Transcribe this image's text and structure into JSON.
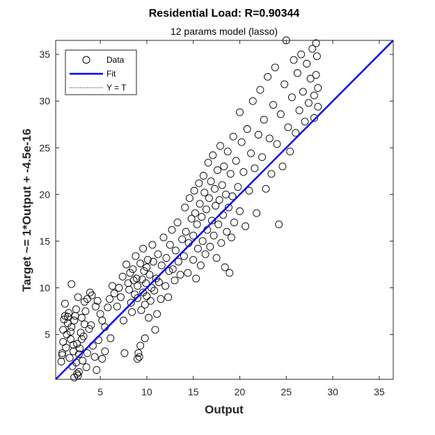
{
  "chart_data": {
    "type": "scatter",
    "title": "Residential Load: R=0.90344",
    "subtitle": "12 params model (lasso)",
    "xlabel": "Output",
    "ylabel": "Target ~= 1*Output + -4.5e-16",
    "xlim": [
      0.2,
      36.5
    ],
    "ylim": [
      0.2,
      36.5
    ],
    "xticks": [
      5,
      10,
      15,
      20,
      25,
      30,
      35
    ],
    "yticks": [
      5,
      10,
      15,
      20,
      25,
      30,
      35
    ],
    "grid": false,
    "legend_position": "top-left",
    "legend": [
      {
        "label": "Data",
        "style": "open-circle",
        "color": "#000000"
      },
      {
        "label": "Fit",
        "style": "solid-line",
        "color": "#0000ff"
      },
      {
        "label": "Y = T",
        "style": "dotted-line",
        "color": "#000000"
      }
    ],
    "fit": {
      "slope": 1,
      "intercept": -4.5e-16,
      "color": "#0000ff"
    },
    "series": [
      {
        "name": "Data",
        "marker": "open-circle",
        "color": "#000000",
        "points": [
          [
            0.8,
            2.1
          ],
          [
            0.9,
            3.0
          ],
          [
            1.0,
            4.2
          ],
          [
            1.0,
            5.5
          ],
          [
            1.1,
            6.6
          ],
          [
            1.2,
            7.0
          ],
          [
            0.9,
            2.8
          ],
          [
            1.3,
            3.6
          ],
          [
            1.4,
            5.0
          ],
          [
            1.5,
            6.2
          ],
          [
            1.6,
            7.3
          ],
          [
            1.7,
            2.5
          ],
          [
            1.8,
            4.5
          ],
          [
            1.9,
            5.8
          ],
          [
            2.0,
            1.6
          ],
          [
            2.1,
            3.2
          ],
          [
            2.2,
            6.5
          ],
          [
            2.3,
            7.0
          ],
          [
            2.4,
            2.0
          ],
          [
            2.5,
            4.0
          ],
          [
            2.6,
            0.6
          ],
          [
            2.7,
            1.0
          ],
          [
            2.8,
            3.5
          ],
          [
            2.9,
            5.2
          ],
          [
            3.0,
            6.8
          ],
          [
            2.2,
            0.4
          ],
          [
            2.5,
            0.8
          ],
          [
            3.1,
            2.2
          ],
          [
            3.2,
            4.8
          ],
          [
            3.4,
            7.5
          ],
          [
            3.5,
            1.5
          ],
          [
            3.6,
            3.0
          ],
          [
            3.8,
            5.6
          ],
          [
            4.0,
            6.0
          ],
          [
            4.2,
            3.8
          ],
          [
            4.4,
            2.6
          ],
          [
            4.5,
            8.0
          ],
          [
            4.6,
            1.2
          ],
          [
            4.8,
            4.4
          ],
          [
            5.0,
            7.2
          ],
          [
            1.2,
            8.3
          ],
          [
            1.5,
            6.9
          ],
          [
            1.8,
            5.3
          ],
          [
            2.1,
            3.9
          ],
          [
            2.4,
            7.7
          ],
          [
            2.7,
            2.9
          ],
          [
            3.0,
            4.5
          ],
          [
            3.3,
            6.1
          ],
          [
            3.6,
            8.8
          ],
          [
            3.9,
            9.5
          ],
          [
            1.9,
            10.4
          ],
          [
            2.6,
            9.0
          ],
          [
            3.3,
            8.5
          ],
          [
            4.1,
            9.2
          ],
          [
            4.7,
            8.6
          ],
          [
            5.2,
            6.5
          ],
          [
            5.5,
            5.8
          ],
          [
            5.8,
            7.9
          ],
          [
            6.0,
            8.8
          ],
          [
            6.3,
            10.2
          ],
          [
            5.5,
            3.2
          ],
          [
            5.2,
            2.4
          ],
          [
            6.1,
            4.6
          ],
          [
            6.5,
            9.4
          ],
          [
            6.8,
            8.0
          ],
          [
            7.0,
            10.0
          ],
          [
            7.2,
            9.0
          ],
          [
            7.4,
            11.2
          ],
          [
            7.5,
            6.5
          ],
          [
            7.6,
            3.0
          ],
          [
            7.8,
            12.5
          ],
          [
            8.0,
            10.5
          ],
          [
            8.1,
            9.8
          ],
          [
            8.2,
            11.6
          ],
          [
            8.3,
            8.4
          ],
          [
            8.4,
            7.4
          ],
          [
            8.5,
            12.0
          ],
          [
            8.6,
            10.8
          ],
          [
            8.7,
            9.3
          ],
          [
            8.8,
            13.4
          ],
          [
            8.9,
            11.0
          ],
          [
            9.0,
            10.2
          ],
          [
            9.0,
            8.9
          ],
          [
            9.0,
            2.4
          ],
          [
            9.1,
            3.0
          ],
          [
            9.2,
            2.6
          ],
          [
            9.3,
            3.8
          ],
          [
            9.3,
            12.6
          ],
          [
            9.4,
            7.6
          ],
          [
            9.5,
            10.9
          ],
          [
            9.6,
            9.5
          ],
          [
            9.6,
            14.2
          ],
          [
            9.7,
            11.8
          ],
          [
            9.8,
            8.2
          ],
          [
            9.8,
            4.6
          ],
          [
            9.9,
            10.5
          ],
          [
            10.0,
            12.2
          ],
          [
            10.0,
            9.1
          ],
          [
            10.1,
            13.0
          ],
          [
            10.2,
            6.8
          ],
          [
            10.3,
            11.4
          ],
          [
            10.4,
            8.6
          ],
          [
            10.5,
            10.0
          ],
          [
            10.6,
            14.6
          ],
          [
            10.7,
            12.8
          ],
          [
            10.8,
            9.7
          ],
          [
            10.9,
            5.5
          ],
          [
            11.0,
            11.0
          ],
          [
            11.1,
            7.2
          ],
          [
            11.2,
            13.6
          ],
          [
            11.3,
            10.6
          ],
          [
            11.5,
            8.8
          ],
          [
            11.6,
            12.4
          ],
          [
            11.8,
            15.4
          ],
          [
            12.0,
            10.2
          ],
          [
            12.1,
            13.2
          ],
          [
            12.3,
            9.0
          ],
          [
            12.4,
            11.8
          ],
          [
            12.5,
            14.6
          ],
          [
            12.7,
            16.2
          ],
          [
            12.8,
            12.0
          ],
          [
            13.0,
            10.8
          ],
          [
            13.1,
            14.0
          ],
          [
            13.3,
            17.0
          ],
          [
            13.4,
            12.8
          ],
          [
            13.6,
            11.4
          ],
          [
            13.8,
            15.2
          ],
          [
            14.0,
            13.4
          ],
          [
            14.1,
            18.6
          ],
          [
            14.2,
            16.0
          ],
          [
            14.4,
            11.6
          ],
          [
            14.5,
            14.8
          ],
          [
            14.6,
            19.6
          ],
          [
            14.8,
            17.4
          ],
          [
            15.0,
            13.0
          ],
          [
            15.0,
            15.6
          ],
          [
            15.1,
            20.4
          ],
          [
            15.2,
            18.0
          ],
          [
            15.3,
            11.0
          ],
          [
            15.4,
            16.8
          ],
          [
            15.5,
            14.2
          ],
          [
            15.6,
            21.2
          ],
          [
            15.7,
            19.0
          ],
          [
            15.8,
            12.4
          ],
          [
            15.9,
            17.6
          ],
          [
            16.0,
            15.0
          ],
          [
            16.1,
            22.0
          ],
          [
            16.2,
            20.2
          ],
          [
            16.3,
            13.6
          ],
          [
            16.4,
            18.4
          ],
          [
            16.5,
            16.2
          ],
          [
            16.6,
            23.4
          ],
          [
            16.7,
            19.6
          ],
          [
            16.8,
            14.4
          ],
          [
            16.9,
            21.4
          ],
          [
            17.0,
            17.2
          ],
          [
            17.1,
            24.2
          ],
          [
            17.2,
            15.6
          ],
          [
            17.3,
            20.6
          ],
          [
            17.4,
            18.8
          ],
          [
            17.5,
            13.2
          ],
          [
            17.6,
            22.6
          ],
          [
            17.7,
            16.8
          ],
          [
            17.8,
            19.4
          ],
          [
            17.9,
            25.2
          ],
          [
            18.0,
            14.8
          ],
          [
            18.1,
            21.0
          ],
          [
            18.2,
            17.8
          ],
          [
            18.3,
            23.0
          ],
          [
            18.4,
            12.2
          ],
          [
            18.5,
            20.0
          ],
          [
            18.6,
            16.0
          ],
          [
            18.7,
            24.6
          ],
          [
            18.8,
            18.6
          ],
          [
            18.9,
            11.6
          ],
          [
            19.0,
            22.2
          ],
          [
            19.1,
            15.4
          ],
          [
            19.2,
            19.8
          ],
          [
            19.3,
            26.2
          ],
          [
            19.4,
            17.0
          ],
          [
            19.6,
            23.6
          ],
          [
            19.8,
            20.8
          ],
          [
            20.0,
            28.8
          ],
          [
            20.0,
            18.2
          ],
          [
            20.2,
            25.6
          ],
          [
            20.4,
            22.4
          ],
          [
            20.6,
            16.6
          ],
          [
            20.8,
            27.0
          ],
          [
            21.0,
            20.4
          ],
          [
            21.2,
            24.4
          ],
          [
            21.4,
            30.0
          ],
          [
            21.6,
            22.8
          ],
          [
            21.8,
            18.0
          ],
          [
            22.0,
            26.4
          ],
          [
            22.2,
            31.2
          ],
          [
            22.4,
            24.0
          ],
          [
            22.6,
            28.0
          ],
          [
            22.8,
            20.6
          ],
          [
            23.0,
            32.6
          ],
          [
            23.2,
            26.0
          ],
          [
            23.4,
            22.2
          ],
          [
            23.6,
            29.6
          ],
          [
            23.8,
            33.6
          ],
          [
            24.0,
            25.4
          ],
          [
            24.2,
            16.8
          ],
          [
            24.4,
            28.6
          ],
          [
            24.6,
            23.0
          ],
          [
            24.8,
            31.8
          ],
          [
            25.0,
            36.5
          ],
          [
            25.2,
            27.2
          ],
          [
            25.4,
            24.6
          ],
          [
            25.6,
            30.4
          ],
          [
            25.8,
            34.4
          ],
          [
            26.0,
            26.6
          ],
          [
            26.2,
            33.0
          ],
          [
            26.4,
            29.0
          ],
          [
            26.6,
            35.0
          ],
          [
            26.8,
            31.0
          ],
          [
            27.0,
            27.8
          ],
          [
            27.2,
            34.0
          ],
          [
            27.4,
            29.8
          ],
          [
            27.6,
            32.4
          ],
          [
            27.8,
            35.6
          ],
          [
            28.0,
            30.6
          ],
          [
            28.0,
            28.2
          ],
          [
            28.2,
            36.2
          ],
          [
            28.2,
            32.8
          ],
          [
            28.3,
            34.8
          ],
          [
            28.4,
            31.4
          ],
          [
            28.4,
            29.4
          ]
        ]
      }
    ]
  }
}
